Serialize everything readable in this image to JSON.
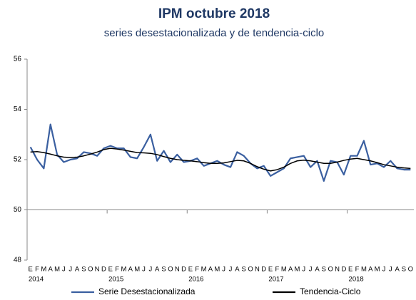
{
  "chart_data": {
    "type": "line",
    "title": "IPM octubre 2018",
    "subtitle": "series desestacionalizada  y de tendencia-ciclo",
    "categories": [
      "E",
      "F",
      "M",
      "A",
      "M",
      "J",
      "J",
      "A",
      "S",
      "O",
      "N",
      "D",
      "E",
      "F",
      "M",
      "A",
      "M",
      "J",
      "J",
      "A",
      "S",
      "O",
      "N",
      "D",
      "E",
      "F",
      "M",
      "A",
      "M",
      "J",
      "J",
      "A",
      "S",
      "O",
      "N",
      "D",
      "E",
      "F",
      "M",
      "A",
      "M",
      "J",
      "J",
      "A",
      "S",
      "O",
      "N",
      "D",
      "E",
      "F",
      "M",
      "A",
      "M",
      "J",
      "J",
      "A",
      "S",
      "O"
    ],
    "years": [
      "2014",
      "2015",
      "2016",
      "2017",
      "2018"
    ],
    "series": [
      {
        "name": "Serie Desestacionalizada",
        "color": "#3a5fa0",
        "values": [
          52.5,
          52.0,
          51.65,
          53.4,
          52.2,
          51.9,
          52.0,
          52.05,
          52.3,
          52.25,
          52.15,
          52.45,
          52.55,
          52.45,
          52.45,
          52.1,
          52.05,
          52.5,
          53.0,
          51.95,
          52.35,
          51.9,
          52.2,
          51.9,
          51.95,
          52.05,
          51.75,
          51.85,
          51.95,
          51.8,
          51.7,
          52.3,
          52.15,
          51.85,
          51.65,
          51.75,
          51.35,
          51.5,
          51.65,
          52.05,
          52.1,
          52.15,
          51.7,
          51.95,
          51.15,
          51.95,
          51.9,
          51.4,
          52.15,
          52.15,
          52.75,
          51.8,
          51.85,
          51.7,
          51.95,
          51.65,
          51.6,
          51.6
        ]
      },
      {
        "name": "Tendencia-Ciclo",
        "color": "#000000",
        "values": [
          52.3,
          52.32,
          52.28,
          52.22,
          52.15,
          52.1,
          52.08,
          52.1,
          52.15,
          52.22,
          52.3,
          52.4,
          52.45,
          52.42,
          52.38,
          52.33,
          52.28,
          52.27,
          52.25,
          52.2,
          52.12,
          52.05,
          52.0,
          51.97,
          51.95,
          51.92,
          51.88,
          51.85,
          51.85,
          51.87,
          51.92,
          51.97,
          51.95,
          51.85,
          51.72,
          51.62,
          51.55,
          51.6,
          51.7,
          51.85,
          51.95,
          51.98,
          51.95,
          51.9,
          51.85,
          51.85,
          51.9,
          51.97,
          52.02,
          52.05,
          52.0,
          51.95,
          51.88,
          51.8,
          51.75,
          51.7,
          51.67,
          51.65
        ]
      }
    ],
    "ylim": [
      48,
      56
    ],
    "yticks": [
      48,
      50,
      52,
      54,
      56
    ],
    "xaxis_crosses": 50,
    "grid": false,
    "legend": "bottom"
  }
}
